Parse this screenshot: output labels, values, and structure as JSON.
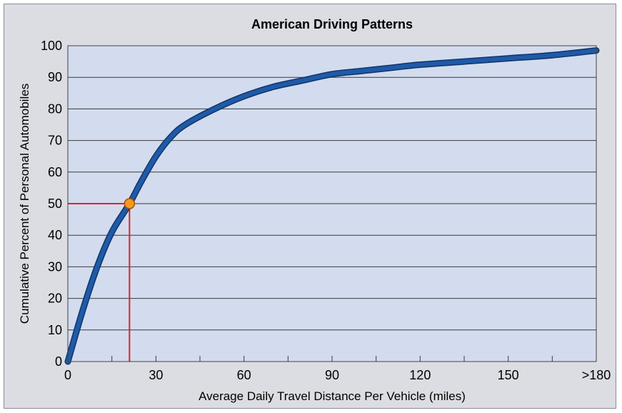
{
  "chart_data": {
    "type": "line",
    "title": "American Driving Patterns",
    "xlabel": "Average Daily Travel Distance Per Vehicle (miles)",
    "ylabel": "Cumulative Percent of Personal Automobiles",
    "xlim": [
      0,
      180
    ],
    "ylim": [
      0,
      100
    ],
    "x_ticks": [
      {
        "value": 0,
        "label": "0"
      },
      {
        "value": 30,
        "label": "30"
      },
      {
        "value": 60,
        "label": "60"
      },
      {
        "value": 90,
        "label": "90"
      },
      {
        "value": 120,
        "label": "120"
      },
      {
        "value": 150,
        "label": "150"
      },
      {
        "value": 180,
        "label": ">180"
      }
    ],
    "x_minor_ticks": [
      15,
      45,
      75,
      105,
      135,
      165
    ],
    "y_ticks": [
      0,
      10,
      20,
      30,
      40,
      50,
      60,
      70,
      80,
      90,
      100
    ],
    "grid": "horizontal",
    "series": [
      {
        "color": "#1f5aa8",
        "x": [
          0,
          5,
          10,
          15,
          21,
          25,
          30,
          35,
          40,
          50,
          60,
          70,
          80,
          90,
          100,
          110,
          120,
          135,
          150,
          165,
          180
        ],
        "y": [
          0,
          16,
          30,
          41,
          50,
          57,
          65,
          71,
          75,
          80,
          84,
          87,
          89,
          91,
          92,
          93,
          94,
          95,
          96,
          97,
          98.5
        ]
      }
    ],
    "highlight": {
      "x": 21,
      "y": 50,
      "line_color": "#e0202a",
      "marker_color": "#f59a1c"
    },
    "colors": {
      "plot_background": "#d3dcee",
      "frame_background": "#dcdde3"
    }
  }
}
